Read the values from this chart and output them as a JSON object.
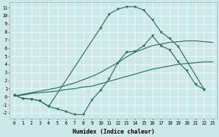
{
  "bg_color": "#cce8e8",
  "line_color": "#2a7060",
  "xlim": [
    -0.5,
    23.5
  ],
  "ylim": [
    -2.7,
    11.7
  ],
  "xticks": [
    0,
    1,
    2,
    3,
    4,
    5,
    6,
    7,
    8,
    9,
    10,
    11,
    12,
    13,
    14,
    15,
    16,
    17,
    18,
    19,
    20,
    21,
    22,
    23
  ],
  "yticks": [
    -2,
    -1,
    0,
    1,
    2,
    3,
    4,
    5,
    6,
    7,
    8,
    9,
    10,
    11
  ],
  "xlabel": "Humidex (Indice chaleur)",
  "series": [
    {
      "x": [
        0,
        1,
        2,
        3,
        4,
        5,
        6,
        7,
        8,
        9,
        10,
        11,
        12,
        13,
        14,
        15,
        16,
        17,
        18,
        19,
        20,
        21,
        22
      ],
      "y": [
        0.2,
        -0.2,
        -0.3,
        -0.5,
        -1.2,
        -1.5,
        -1.8,
        -2.2,
        -2.2,
        -0.4,
        0.8,
        2.2,
        4.2,
        5.5,
        5.6,
        6.3,
        7.5,
        6.3,
        5.8,
        4.3,
        3.2,
        1.5,
        0.9
      ],
      "marker": "v",
      "ms": 2.5,
      "lw": 0.9
    },
    {
      "x": [
        0,
        1,
        2,
        3,
        4,
        5,
        6,
        7,
        8,
        9,
        10,
        11,
        12,
        13,
        14,
        15,
        16,
        17,
        18,
        19,
        20,
        21,
        22,
        23
      ],
      "y": [
        0.1,
        0.2,
        0.4,
        0.5,
        0.6,
        0.7,
        0.9,
        1.0,
        1.2,
        1.3,
        1.6,
        1.9,
        2.2,
        2.5,
        2.8,
        3.1,
        3.4,
        3.6,
        3.8,
        4.0,
        4.1,
        4.2,
        4.3,
        4.3
      ],
      "marker": null,
      "ms": 0,
      "lw": 0.9
    },
    {
      "x": [
        0,
        1,
        2,
        3,
        4,
        5,
        6,
        7,
        8,
        9,
        10,
        11,
        12,
        13,
        14,
        15,
        16,
        17,
        18,
        19,
        20,
        21,
        22,
        23
      ],
      "y": [
        0.1,
        0.3,
        0.5,
        0.7,
        0.9,
        1.1,
        1.4,
        1.7,
        2.1,
        2.5,
        3.0,
        3.6,
        4.2,
        4.9,
        5.5,
        5.9,
        6.3,
        6.5,
        6.7,
        6.8,
        6.9,
        6.9,
        6.8,
        6.7
      ],
      "marker": null,
      "ms": 0,
      "lw": 0.9
    },
    {
      "x": [
        0,
        1,
        2,
        3,
        4,
        10,
        11,
        12,
        13,
        14,
        15,
        16,
        17,
        18,
        19,
        22
      ],
      "y": [
        0.2,
        -0.2,
        -0.3,
        -0.5,
        -1.2,
        8.5,
        10.2,
        10.8,
        11.1,
        11.1,
        10.7,
        9.5,
        8.0,
        7.2,
        6.2,
        0.9
      ],
      "marker": "v",
      "ms": 2.5,
      "lw": 0.9
    }
  ]
}
